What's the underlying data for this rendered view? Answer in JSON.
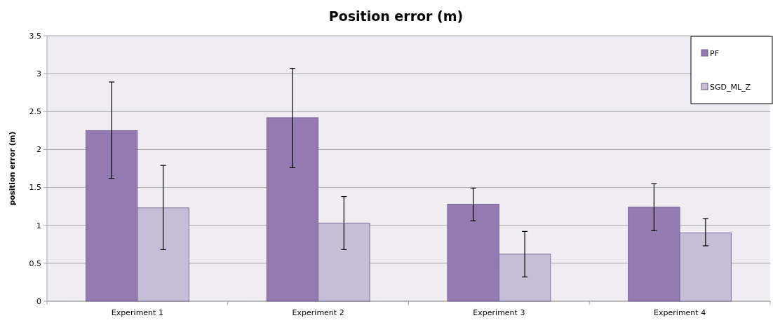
{
  "chart_data": {
    "type": "bar",
    "title": "Position error (m)",
    "ylabel": "position error (m)",
    "categories": [
      "Experiment 1",
      "Experiment 2",
      "Experiment 3",
      "Experiment 4"
    ],
    "series": [
      {
        "name": "PF",
        "color": "#937bb1",
        "values": [
          2.25,
          2.42,
          1.28,
          1.24
        ],
        "errors": [
          [
            1.62,
            2.89
          ],
          [
            1.76,
            3.07
          ],
          [
            1.06,
            1.49
          ],
          [
            0.93,
            1.55
          ]
        ]
      },
      {
        "name": "SGD_ML_Z",
        "color": "#c6bdd6",
        "values": [
          1.23,
          1.03,
          0.62,
          0.9
        ],
        "errors": [
          [
            0.68,
            1.79
          ],
          [
            0.68,
            1.38
          ],
          [
            0.32,
            0.92
          ],
          [
            0.73,
            1.09
          ]
        ]
      }
    ],
    "ylim": [
      0,
      3.5
    ],
    "yticks": [
      0,
      0.5,
      1,
      1.5,
      2,
      2.5,
      3,
      3.5
    ],
    "grid": "y",
    "legend": "top right"
  }
}
